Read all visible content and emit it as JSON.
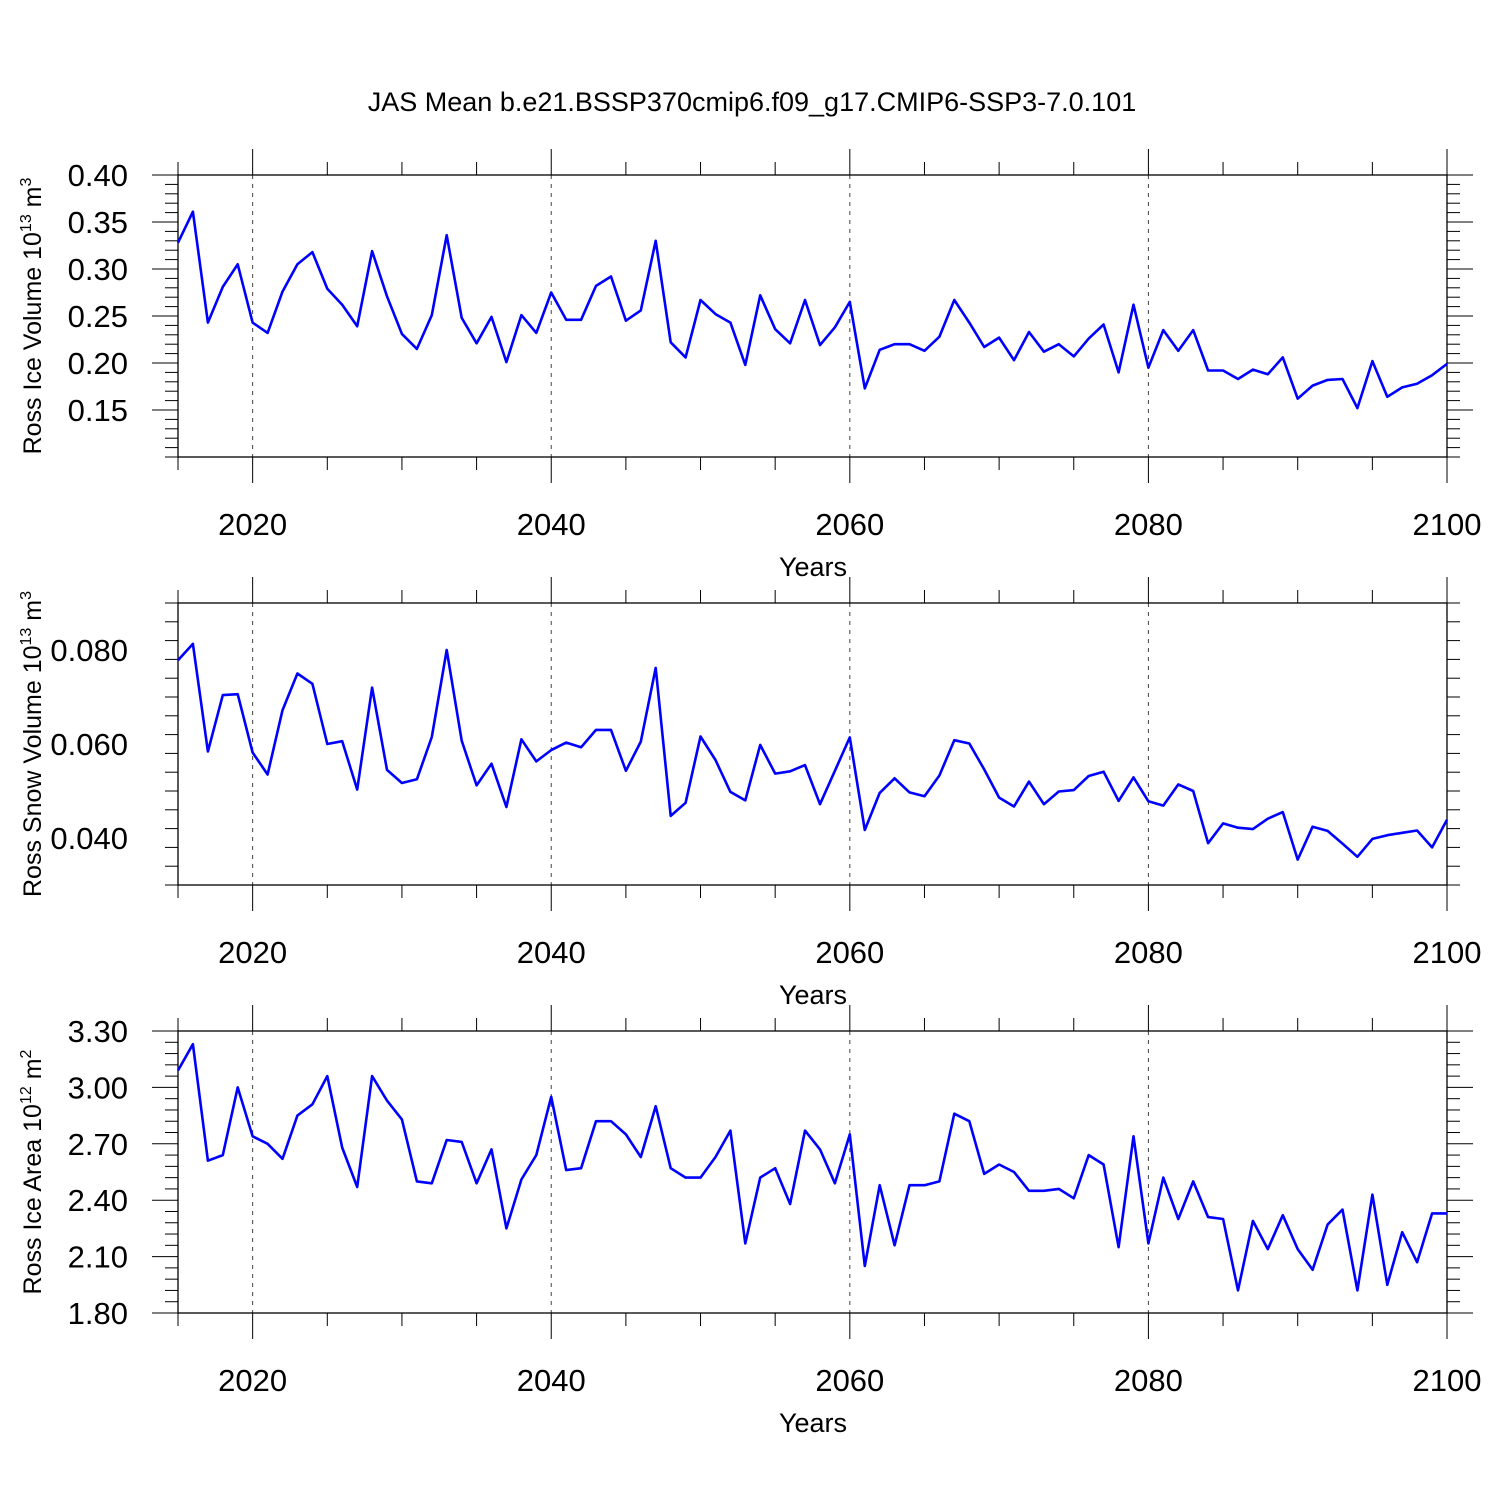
{
  "figure": {
    "title": "JAS Mean b.e21.BSSP370cmip6.f09_g17.CMIP6-SSP3-7.0.101"
  },
  "chart_data": [
    {
      "type": "line",
      "ylabel": "Ross Ice Volume 10",
      "ylabel_exp": "13",
      "ylabel_unit": " m",
      "ylabel_unit_exp": "3",
      "xlabel": "Years",
      "xlim": [
        2015,
        2100
      ],
      "ylim": [
        0.1,
        0.4
      ],
      "x_ticks": [
        "2020",
        "2040",
        "2060",
        "2080",
        "2100"
      ],
      "y_ticks": [
        "0.15",
        "0.20",
        "0.25",
        "0.30",
        "0.35",
        "0.40"
      ],
      "grid": "dashed vertical at major x ticks",
      "series": [
        {
          "name": "Ross Ice Volume",
          "color": "#0000ff",
          "x_start": 2015,
          "values": [
            0.328,
            0.361,
            0.243,
            0.281,
            0.305,
            0.243,
            0.232,
            0.276,
            0.305,
            0.318,
            0.279,
            0.262,
            0.239,
            0.319,
            0.271,
            0.231,
            0.215,
            0.251,
            0.336,
            0.248,
            0.221,
            0.249,
            0.201,
            0.251,
            0.232,
            0.275,
            0.246,
            0.246,
            0.282,
            0.292,
            0.245,
            0.256,
            0.33,
            0.222,
            0.206,
            0.267,
            0.252,
            0.243,
            0.198,
            0.272,
            0.236,
            0.221,
            0.267,
            0.219,
            0.238,
            0.265,
            0.173,
            0.214,
            0.22,
            0.22,
            0.213,
            0.228,
            0.267,
            0.243,
            0.217,
            0.227,
            0.203,
            0.233,
            0.212,
            0.22,
            0.207,
            0.226,
            0.241,
            0.19,
            0.262,
            0.195,
            0.235,
            0.213,
            0.235,
            0.192,
            0.192,
            0.183,
            0.193,
            0.188,
            0.206,
            0.162,
            0.176,
            0.182,
            0.183,
            0.152,
            0.202,
            0.164,
            0.174,
            0.178,
            0.187,
            0.199
          ]
        }
      ]
    },
    {
      "type": "line",
      "ylabel": "Ross Snow Volume 10",
      "ylabel_exp": "13",
      "ylabel_unit": " m",
      "ylabel_unit_exp": "3",
      "xlabel": "Years",
      "xlim": [
        2015,
        2100
      ],
      "ylim": [
        0.03,
        0.09
      ],
      "x_ticks": [
        "2020",
        "2040",
        "2060",
        "2080",
        "2100"
      ],
      "y_ticks": [
        "0.040",
        "0.060",
        "0.080"
      ],
      "grid": "dashed vertical at major x ticks",
      "series": [
        {
          "name": "Ross Snow Volume",
          "color": "#0000ff",
          "x_start": 2015,
          "values": [
            0.0778,
            0.0813,
            0.0584,
            0.0704,
            0.0706,
            0.0582,
            0.0535,
            0.0672,
            0.075,
            0.0728,
            0.06,
            0.0606,
            0.0503,
            0.072,
            0.0545,
            0.0517,
            0.0525,
            0.0615,
            0.08,
            0.0607,
            0.0512,
            0.0558,
            0.0466,
            0.061,
            0.0563,
            0.0587,
            0.0603,
            0.0593,
            0.063,
            0.063,
            0.0543,
            0.0605,
            0.0762,
            0.0447,
            0.0475,
            0.0616,
            0.0566,
            0.0498,
            0.048,
            0.0598,
            0.0537,
            0.0542,
            0.0555,
            0.0472,
            0.0543,
            0.0614,
            0.0417,
            0.0496,
            0.0527,
            0.0497,
            0.0489,
            0.0533,
            0.0608,
            0.0601,
            0.0546,
            0.0486,
            0.0467,
            0.052,
            0.0472,
            0.0499,
            0.0502,
            0.0532,
            0.0541,
            0.0479,
            0.0529,
            0.0478,
            0.0469,
            0.0514,
            0.05,
            0.0389,
            0.0431,
            0.0422,
            0.0419,
            0.0441,
            0.0455,
            0.0354,
            0.0424,
            0.0415,
            0.0388,
            0.036,
            0.0398,
            0.0406,
            0.0411,
            0.0416,
            0.038,
            0.0439
          ]
        }
      ]
    },
    {
      "type": "line",
      "ylabel": "Ross Ice Area 10",
      "ylabel_exp": "12",
      "ylabel_unit": " m",
      "ylabel_unit_exp": "2",
      "xlabel": "Years",
      "xlim": [
        2015,
        2100
      ],
      "ylim": [
        1.8,
        3.3
      ],
      "x_ticks": [
        "2020",
        "2040",
        "2060",
        "2080",
        "2100"
      ],
      "y_ticks": [
        "1.80",
        "2.10",
        "2.40",
        "2.70",
        "3.00",
        "3.30"
      ],
      "grid": "dashed vertical at major x ticks",
      "series": [
        {
          "name": "Ross Ice Area",
          "color": "#0000ff",
          "x_start": 2015,
          "values": [
            3.09,
            3.23,
            2.61,
            2.64,
            3.0,
            2.74,
            2.7,
            2.62,
            2.85,
            2.91,
            3.06,
            2.68,
            2.47,
            3.06,
            2.93,
            2.83,
            2.5,
            2.49,
            2.72,
            2.71,
            2.49,
            2.67,
            2.25,
            2.51,
            2.64,
            2.95,
            2.56,
            2.57,
            2.82,
            2.82,
            2.75,
            2.63,
            2.9,
            2.57,
            2.52,
            2.52,
            2.63,
            2.77,
            2.17,
            2.52,
            2.57,
            2.38,
            2.77,
            2.67,
            2.49,
            2.75,
            2.05,
            2.48,
            2.16,
            2.48,
            2.48,
            2.5,
            2.86,
            2.82,
            2.54,
            2.59,
            2.55,
            2.45,
            2.45,
            2.46,
            2.41,
            2.64,
            2.59,
            2.15,
            2.74,
            2.17,
            2.52,
            2.3,
            2.5,
            2.31,
            2.3,
            1.92,
            2.29,
            2.14,
            2.32,
            2.14,
            2.03,
            2.27,
            2.35,
            1.92,
            2.43,
            1.95,
            2.23,
            2.07,
            2.33,
            2.33
          ]
        }
      ]
    }
  ]
}
